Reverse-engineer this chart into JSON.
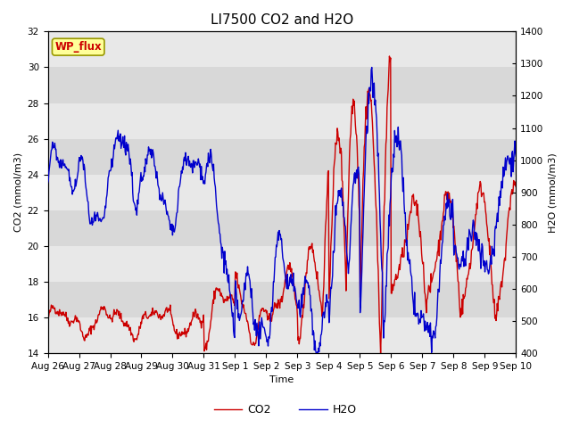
{
  "title": "LI7500 CO2 and H2O",
  "xlabel": "Time",
  "ylabel_left": "CO2 (mmol/m3)",
  "ylabel_right": "H2O (mmol/m3)",
  "ylim_left": [
    14,
    32
  ],
  "ylim_right": [
    400,
    1400
  ],
  "yticks_left": [
    14,
    16,
    18,
    20,
    22,
    24,
    26,
    28,
    30,
    32
  ],
  "yticks_right": [
    400,
    500,
    600,
    700,
    800,
    900,
    1000,
    1100,
    1200,
    1300,
    1400
  ],
  "xtick_labels": [
    "Aug 26",
    "Aug 27",
    "Aug 28",
    "Aug 29",
    "Aug 30",
    "Aug 31",
    "Sep 1",
    "Sep 2",
    "Sep 3",
    "Sep 4",
    "Sep 5",
    "Sep 6",
    "Sep 7",
    "Sep 8",
    "Sep 9",
    "Sep 10"
  ],
  "legend_labels": [
    "CO2",
    "H2O"
  ],
  "co2_color": "#cc0000",
  "h2o_color": "#0000cc",
  "line_width": 1.0,
  "annotation_text": "WP_flux",
  "annotation_color": "#cc0000",
  "annotation_bg": "#ffff99",
  "annotation_border": "#999900",
  "bg_color_dark": "#d8d8d8",
  "bg_color_light": "#e8e8e8",
  "title_fontsize": 11,
  "axis_fontsize": 8,
  "tick_fontsize": 7.5,
  "legend_fontsize": 9
}
